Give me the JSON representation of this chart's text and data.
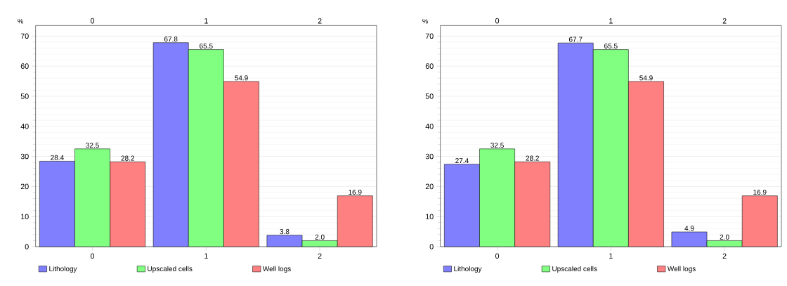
{
  "chart_data": [
    {
      "type": "bar",
      "ylabel": "%",
      "categories": [
        "0",
        "1",
        "2"
      ],
      "ylim": [
        0,
        73.5
      ],
      "yticks": [
        0,
        10,
        20,
        30,
        40,
        50,
        60,
        70
      ],
      "grid": "y",
      "legend": "bottom left",
      "series": [
        {
          "name": "Lithology",
          "color": "#8080ff",
          "values": [
            28.4,
            67.8,
            3.8
          ],
          "value_labels": [
            "28.4",
            "67.8",
            "3.8"
          ]
        },
        {
          "name": "Upscaled cells",
          "color": "#80ff80",
          "values": [
            32.5,
            65.5,
            2.0
          ],
          "value_labels": [
            "32.5",
            "65.5",
            "2.0"
          ]
        },
        {
          "name": "Well logs",
          "color": "#ff8080",
          "values": [
            28.2,
            54.9,
            16.9
          ],
          "value_labels": [
            "28.2",
            "54.9",
            "16.9"
          ]
        }
      ]
    },
    {
      "type": "bar",
      "ylabel": "%",
      "categories": [
        "0",
        "1",
        "2"
      ],
      "ylim": [
        0,
        73.5
      ],
      "yticks": [
        0,
        10,
        20,
        30,
        40,
        50,
        60,
        70
      ],
      "grid": "y",
      "legend": "bottom left",
      "series": [
        {
          "name": "Lithology",
          "color": "#8080ff",
          "values": [
            27.4,
            67.7,
            4.9
          ],
          "value_labels": [
            "27.4",
            "67.7",
            "4.9"
          ]
        },
        {
          "name": "Upscaled cells",
          "color": "#80ff80",
          "values": [
            32.5,
            65.5,
            2.0
          ],
          "value_labels": [
            "32.5",
            "65.5",
            "2.0"
          ]
        },
        {
          "name": "Well logs",
          "color": "#ff8080",
          "values": [
            28.2,
            54.9,
            16.9
          ],
          "value_labels": [
            "28.2",
            "54.9",
            "16.9"
          ]
        }
      ]
    }
  ]
}
